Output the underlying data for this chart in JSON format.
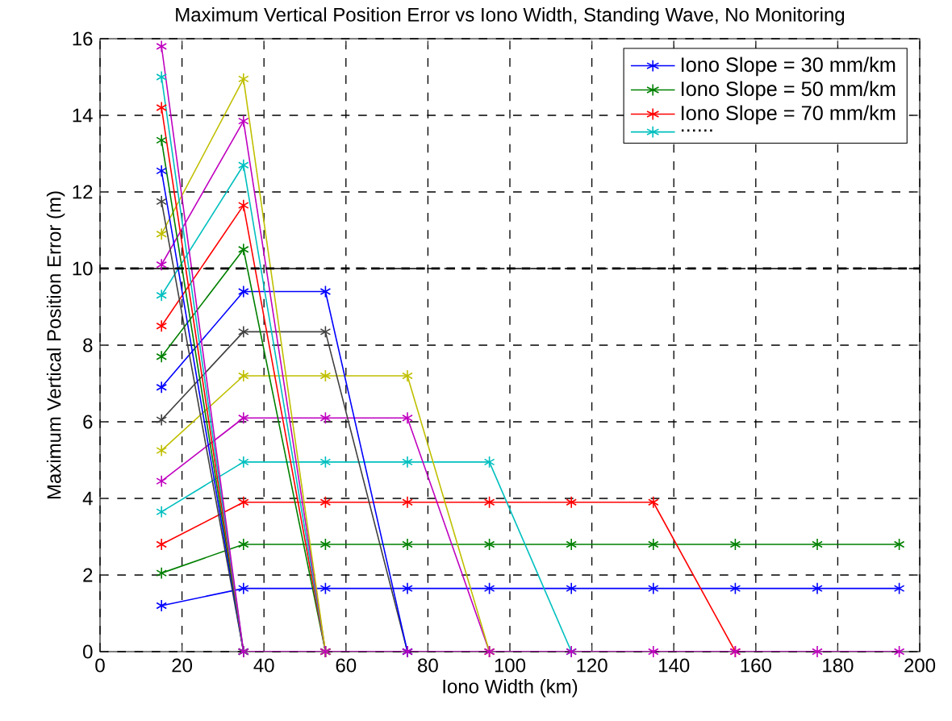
{
  "chart_data": {
    "type": "line",
    "title": "Maximum Vertical Position Error vs Iono Width, Standing Wave, No Monitoring",
    "xlabel": "Iono Width (km)",
    "ylabel": "Maximum Vertical Position Error (m)",
    "x": [
      15,
      35,
      55,
      75,
      95,
      115,
      135,
      155,
      175,
      195
    ],
    "series": [
      {
        "name": "Iono Slope = 30 mm/km",
        "color": "#0000ff",
        "values": [
          1.2,
          1.65,
          1.65,
          1.65,
          1.65,
          1.65,
          1.65,
          1.65,
          1.65,
          1.65
        ]
      },
      {
        "name": "Iono Slope = 50 mm/km",
        "color": "#008000",
        "values": [
          2.05,
          2.8,
          2.8,
          2.8,
          2.8,
          2.8,
          2.8,
          2.8,
          2.8,
          2.8
        ]
      },
      {
        "name": "Iono Slope = 70 mm/km",
        "color": "#ff0000",
        "values": [
          2.8,
          3.9,
          3.9,
          3.9,
          3.9,
          3.9,
          3.9,
          0,
          null,
          null
        ]
      },
      {
        "name": "......",
        "color": "#00bfbf",
        "values": [
          3.65,
          4.95,
          4.95,
          4.95,
          4.95,
          0,
          null,
          null,
          null,
          null
        ]
      },
      {
        "color": "#bf00bf",
        "values": [
          4.45,
          6.1,
          6.1,
          6.1,
          0,
          null,
          null,
          null,
          null,
          null
        ]
      },
      {
        "color": "#bfbf00",
        "values": [
          5.25,
          7.2,
          7.2,
          7.2,
          0,
          null,
          null,
          null,
          null,
          null
        ]
      },
      {
        "color": "#404040",
        "values": [
          6.05,
          8.35,
          8.35,
          0,
          null,
          null,
          null,
          null,
          null,
          null
        ]
      },
      {
        "color": "#0000ff",
        "values": [
          6.9,
          9.4,
          9.4,
          0,
          null,
          null,
          null,
          null,
          null,
          null
        ]
      },
      {
        "color": "#008000",
        "values": [
          7.7,
          10.5,
          0,
          null,
          null,
          null,
          null,
          null,
          null,
          null
        ]
      },
      {
        "color": "#ff0000",
        "values": [
          8.5,
          11.65,
          0,
          null,
          null,
          null,
          null,
          null,
          null,
          null
        ]
      },
      {
        "color": "#00bfbf",
        "values": [
          9.3,
          12.7,
          0,
          null,
          null,
          null,
          null,
          null,
          null,
          null
        ]
      },
      {
        "color": "#bf00bf",
        "values": [
          10.1,
          13.85,
          0,
          null,
          null,
          null,
          null,
          null,
          null,
          null
        ]
      },
      {
        "color": "#bfbf00",
        "values": [
          10.9,
          14.95,
          0,
          null,
          null,
          null,
          null,
          null,
          null,
          null
        ]
      },
      {
        "color": "#404040",
        "values": [
          11.75,
          0,
          null,
          null,
          null,
          null,
          null,
          null,
          null,
          null
        ]
      },
      {
        "color": "#0000ff",
        "values": [
          12.55,
          0,
          null,
          null,
          null,
          null,
          null,
          null,
          null,
          null
        ]
      },
      {
        "color": "#008000",
        "values": [
          13.35,
          0,
          null,
          null,
          null,
          null,
          null,
          null,
          null,
          null
        ]
      },
      {
        "color": "#ff0000",
        "values": [
          14.2,
          0,
          null,
          null,
          null,
          null,
          null,
          null,
          null,
          null
        ]
      },
      {
        "color": "#00bfbf",
        "values": [
          15.0,
          0,
          null,
          null,
          null,
          null,
          null,
          null,
          null,
          null
        ]
      },
      {
        "color": "#bf00bf",
        "values": [
          15.8,
          0,
          0,
          0,
          0,
          0,
          0,
          0,
          0,
          0
        ]
      }
    ],
    "xlim": [
      0,
      200
    ],
    "ylim": [
      0,
      16
    ],
    "xticks": [
      0,
      20,
      40,
      60,
      80,
      100,
      120,
      140,
      160,
      180,
      200
    ],
    "yticks": [
      0,
      2,
      4,
      6,
      8,
      10,
      12,
      14,
      16
    ],
    "ref_lines": [
      {
        "axis": "y",
        "value": 10,
        "color": "#000000",
        "line_style": "dashed"
      }
    ],
    "grid": true,
    "legend": "top right",
    "marker": "cross",
    "line_style": "solid"
  }
}
